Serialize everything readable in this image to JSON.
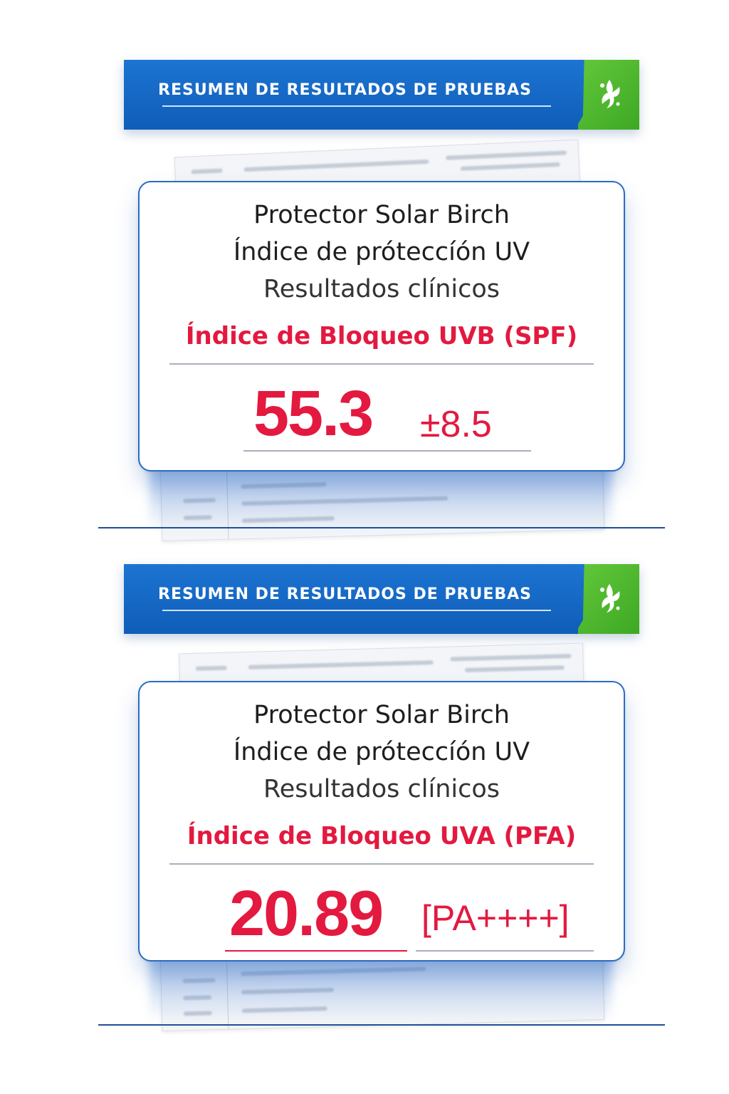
{
  "panels": [
    {
      "banner": "RESUMEN DE RESULTADOS DE PRUEBAS",
      "product": "Protector Solar Birch",
      "line2": "Índice de próteccíón UV",
      "line3": "Resultados clínicos",
      "index_label": "Índice de Bloqueo UVB (SPF)",
      "value": "55.3",
      "qualifier": "±8.5",
      "logo_icon": "birch-leaf-icon"
    },
    {
      "banner": "RESUMEN DE RESULTADOS DE PRUEBAS",
      "product": "Protector Solar Birch",
      "line2": "Índice de próteccíón UV",
      "line3": "Resultados clínicos",
      "index_label": "Índice de Bloqueo UVA (PFA)",
      "value": "20.89",
      "qualifier": "[PA++++]",
      "logo_icon": "birch-leaf-icon"
    }
  ],
  "colors": {
    "banner_blue": "#1466c2",
    "accent_green": "#4cb82c",
    "highlight_red": "#e3193f",
    "card_border": "#2a6cc4"
  }
}
